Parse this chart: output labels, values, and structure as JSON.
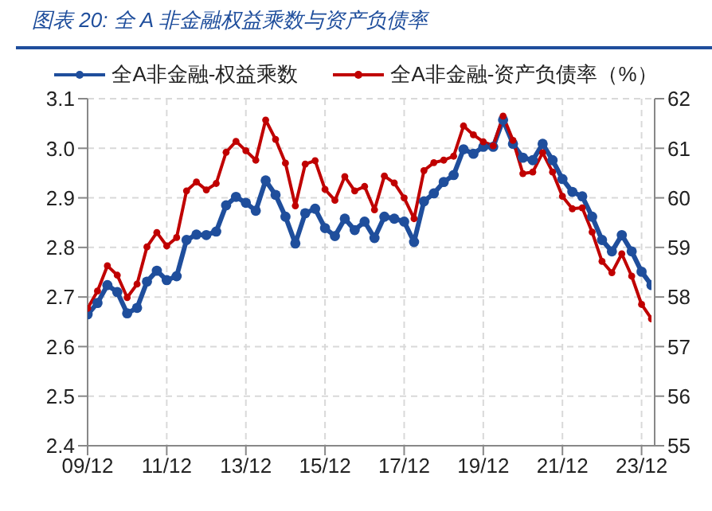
{
  "chart_data": {
    "type": "line",
    "title": "图表 20:  全 A 非金融权益乘数与资产负债率",
    "categories": [
      "09/12",
      null,
      null,
      null,
      null,
      null,
      null,
      null,
      "11/12",
      null,
      null,
      null,
      null,
      null,
      null,
      null,
      "13/12",
      null,
      null,
      null,
      null,
      null,
      null,
      null,
      "15/12",
      null,
      null,
      null,
      null,
      null,
      null,
      null,
      "17/12",
      null,
      null,
      null,
      null,
      null,
      null,
      null,
      "19/12",
      null,
      null,
      null,
      null,
      null,
      null,
      null,
      "21/12",
      null,
      null,
      null,
      null,
      null,
      null,
      null,
      "23/12",
      null
    ],
    "series": [
      {
        "name": "全A非金融-权益乘数",
        "color": "#1f4e9c",
        "axis": "y",
        "values": [
          2.665,
          2.688,
          2.724,
          2.71,
          2.667,
          2.678,
          2.731,
          2.753,
          2.734,
          2.742,
          2.815,
          2.826,
          2.825,
          2.832,
          2.885,
          2.902,
          2.89,
          2.874,
          2.935,
          2.906,
          2.862,
          2.808,
          2.869,
          2.878,
          2.839,
          2.823,
          2.858,
          2.835,
          2.852,
          2.819,
          2.862,
          2.858,
          2.852,
          2.811,
          2.893,
          2.909,
          2.932,
          2.946,
          2.998,
          2.989,
          3.003,
          3.003,
          3.057,
          3.009,
          2.981,
          2.976,
          3.009,
          2.976,
          2.938,
          2.912,
          2.903,
          2.862,
          2.815,
          2.792,
          2.825,
          2.792,
          2.751,
          2.724
        ]
      },
      {
        "name": "全A非金融-资产负债率（%）",
        "color": "#c00000",
        "axis": "y2",
        "values": [
          57.77,
          58.12,
          58.63,
          58.44,
          57.99,
          58.26,
          59.01,
          59.3,
          59.03,
          59.2,
          60.14,
          60.32,
          60.16,
          60.29,
          60.92,
          61.14,
          60.95,
          60.76,
          61.57,
          61.18,
          60.7,
          59.84,
          60.68,
          60.75,
          60.17,
          59.95,
          60.43,
          60.14,
          60.23,
          59.76,
          60.44,
          60.3,
          60.0,
          59.58,
          60.55,
          60.71,
          60.76,
          60.84,
          61.45,
          61.27,
          61.13,
          61.05,
          61.65,
          61.16,
          60.49,
          60.52,
          60.91,
          60.52,
          60.03,
          59.78,
          59.8,
          59.31,
          58.72,
          58.49,
          58.87,
          58.42,
          57.85,
          57.56
        ]
      }
    ],
    "ylim": [
      2.4,
      3.1
    ],
    "yticks": [
      2.4,
      2.5,
      2.6,
      2.7,
      2.8,
      2.9,
      {
        "value": 3,
        "label": "3.0"
      },
      3.1
    ],
    "y2lim": [
      55,
      62
    ],
    "y2ticks": [
      55,
      56,
      57,
      58,
      59,
      60,
      61,
      62
    ],
    "grid": true,
    "legend": "top",
    "marker": "circle",
    "line_style": "solid"
  }
}
